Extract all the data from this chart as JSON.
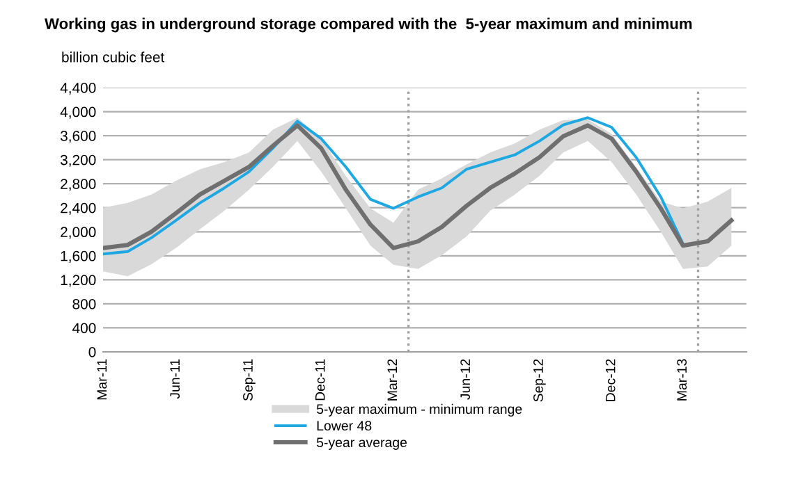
{
  "chart_data": {
    "type": "line",
    "title": "Working gas in underground storage compared with the  5-year maximum and minimum",
    "ylabel": "billion cubic feet",
    "x": [
      "2011-03",
      "2011-04",
      "2011-05",
      "2011-06",
      "2011-07",
      "2011-08",
      "2011-09",
      "2011-10",
      "2011-11",
      "2011-12",
      "2012-01",
      "2012-02",
      "2012-03",
      "2012-04",
      "2012-05",
      "2012-06",
      "2012-07",
      "2012-08",
      "2012-09",
      "2012-10",
      "2012-11",
      "2012-12",
      "2013-01",
      "2013-02",
      "2013-03",
      "2013-04",
      "2013-05"
    ],
    "series": [
      {
        "name": "5-year maximum - minimum range",
        "type": "area",
        "color": "#d9d9d9",
        "values": [
          null,
          null,
          null,
          null,
          null,
          null,
          null,
          null,
          null,
          null,
          null,
          null,
          null,
          null,
          null,
          null,
          null,
          null,
          null,
          null,
          null,
          null,
          null,
          null,
          null,
          null,
          null
        ],
        "lower": [
          1340,
          1260,
          1460,
          1730,
          2040,
          2350,
          2700,
          3080,
          3510,
          3000,
          2390,
          1770,
          1450,
          1380,
          1610,
          1920,
          2350,
          2620,
          2930,
          3320,
          3510,
          3160,
          2620,
          2000,
          1380,
          1420,
          1770
        ],
        "upper": [
          2400,
          2480,
          2620,
          2850,
          3040,
          3160,
          3320,
          3700,
          3900,
          3550,
          2930,
          2390,
          2150,
          2700,
          2890,
          3120,
          3320,
          3470,
          3700,
          3860,
          3870,
          3630,
          3080,
          2500,
          2390,
          2500,
          2730
        ]
      },
      {
        "name": "Lower 48",
        "type": "line",
        "color": "#1ea7e1",
        "values": [
          1630,
          1670,
          1900,
          2190,
          2480,
          2730,
          3000,
          3390,
          3840,
          3550,
          3080,
          2540,
          2390,
          2580,
          2730,
          3040,
          3160,
          3280,
          3510,
          3780,
          3900,
          3740,
          3240,
          2580,
          1800,
          null,
          null
        ]
      },
      {
        "name": "5-year average",
        "type": "line",
        "color": "#6f6f6f",
        "values": [
          1730,
          1780,
          2000,
          2310,
          2620,
          2850,
          3080,
          3430,
          3770,
          3390,
          2700,
          2120,
          1730,
          1840,
          2080,
          2430,
          2730,
          2970,
          3240,
          3590,
          3770,
          3550,
          3000,
          2390,
          1770,
          1840,
          2190
        ]
      }
    ],
    "xlim": [
      "2011-03-01",
      "2013-05-20"
    ],
    "xticks": [
      {
        "value": "2011-03",
        "label": "Mar-11"
      },
      {
        "value": "2011-06",
        "label": "Jun-11"
      },
      {
        "value": "2011-09",
        "label": "Sep-11"
      },
      {
        "value": "2011-12",
        "label": "Dec-11"
      },
      {
        "value": "2012-03",
        "label": "Mar-12"
      },
      {
        "value": "2012-06",
        "label": "Jun-12"
      },
      {
        "value": "2012-09",
        "label": "Sep-12"
      },
      {
        "value": "2012-12",
        "label": "Dec-12"
      },
      {
        "value": "2013-03",
        "label": "Mar-13"
      }
    ],
    "ylim": [
      0,
      4400
    ],
    "yticks": [
      0,
      400,
      800,
      {
        "value": 1200,
        "label": "1,200"
      },
      {
        "value": 1600,
        "label": "1,600"
      },
      {
        "value": 2000,
        "label": "2,000"
      },
      {
        "value": 2400,
        "label": "2,400"
      },
      {
        "value": 2800,
        "label": "2,800"
      },
      {
        "value": 3200,
        "label": "3,200"
      },
      {
        "value": 3600,
        "label": "3,600"
      },
      {
        "value": 4000,
        "label": "4,000"
      },
      {
        "value": 4400,
        "label": "4,400"
      }
    ],
    "ref_lines": [
      {
        "axis": "x",
        "value": "2012-03-20",
        "color": "#a0a0a0",
        "line_style": "dotted"
      },
      {
        "axis": "x",
        "value": "2013-03-20",
        "color": "#a0a0a0",
        "line_style": "dotted"
      }
    ],
    "grid": "y",
    "legend": "bottom"
  }
}
